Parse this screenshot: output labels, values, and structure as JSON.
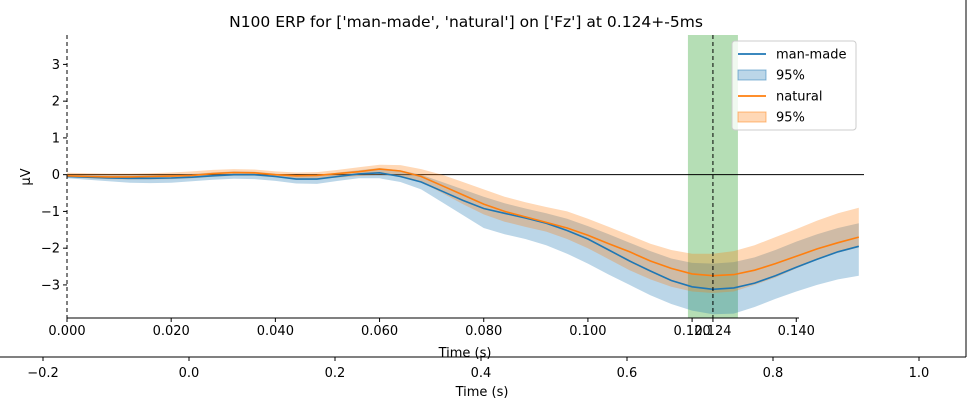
{
  "chart_data": {
    "type": "line",
    "title": "N100 ERP for ['man-made', 'natural'] on ['Fz'] at 0.124+-5ms",
    "xlabel": "Time (s)",
    "ylabel": "µV",
    "xlim": [
      0.0,
      0.153
    ],
    "ylim": [
      -3.9,
      3.8
    ],
    "xticks": [
      {
        "value": 0.0,
        "label": "0.000"
      },
      {
        "value": 0.02,
        "label": "0.020"
      },
      {
        "value": 0.04,
        "label": "0.040"
      },
      {
        "value": 0.06,
        "label": "0.060"
      },
      {
        "value": 0.08,
        "label": "0.080"
      },
      {
        "value": 0.1,
        "label": "0.100"
      },
      {
        "value": 0.12,
        "label": "0.120"
      },
      {
        "value": 0.124,
        "label": "0.124"
      },
      {
        "value": 0.14,
        "label": "0.140"
      }
    ],
    "yticks": [
      {
        "value": 3,
        "label": "3"
      },
      {
        "value": 2,
        "label": "2"
      },
      {
        "value": 1,
        "label": "1"
      },
      {
        "value": 0,
        "label": "0"
      },
      {
        "value": -1,
        "label": "−1"
      },
      {
        "value": -2,
        "label": "−2"
      },
      {
        "value": -3,
        "label": "−3"
      }
    ],
    "highlight_window": [
      0.1192,
      0.1288
    ],
    "highlight_color": "#2ca02c",
    "marker_time": 0.124,
    "x": [
      0.0,
      0.004,
      0.008,
      0.012,
      0.016,
      0.02,
      0.024,
      0.028,
      0.032,
      0.036,
      0.04,
      0.044,
      0.048,
      0.052,
      0.056,
      0.06,
      0.064,
      0.068,
      0.072,
      0.076,
      0.08,
      0.084,
      0.088,
      0.092,
      0.096,
      0.1,
      0.104,
      0.108,
      0.112,
      0.116,
      0.12,
      0.124,
      0.128,
      0.132,
      0.136,
      0.14,
      0.144,
      0.148,
      0.152
    ],
    "series": [
      {
        "name": "man-made",
        "color": "#1f77b4",
        "ci_label": "95%",
        "values": [
          -0.05,
          -0.07,
          -0.09,
          -0.1,
          -0.1,
          -0.09,
          -0.07,
          -0.03,
          0.0,
          0.0,
          -0.05,
          -0.12,
          -0.12,
          -0.05,
          0.02,
          0.05,
          -0.05,
          -0.2,
          -0.45,
          -0.7,
          -0.92,
          -1.05,
          -1.18,
          -1.32,
          -1.52,
          -1.75,
          -2.05,
          -2.35,
          -2.62,
          -2.88,
          -3.05,
          -3.12,
          -3.08,
          -2.95,
          -2.75,
          -2.52,
          -2.3,
          -2.1,
          -1.95
        ],
        "ci_low": [
          -0.1,
          -0.14,
          -0.18,
          -0.22,
          -0.23,
          -0.22,
          -0.18,
          -0.14,
          -0.11,
          -0.12,
          -0.17,
          -0.24,
          -0.25,
          -0.17,
          -0.1,
          -0.1,
          -0.2,
          -0.4,
          -0.75,
          -1.1,
          -1.45,
          -1.62,
          -1.75,
          -1.92,
          -2.15,
          -2.42,
          -2.72,
          -3.0,
          -3.28,
          -3.52,
          -3.7,
          -3.8,
          -3.78,
          -3.6,
          -3.38,
          -3.18,
          -3.0,
          -2.85,
          -2.75
        ]
      },
      {
        "name": "natural",
        "color": "#ff7f0e",
        "ci_label": "95%",
        "values": [
          -0.03,
          -0.05,
          -0.06,
          -0.06,
          -0.05,
          -0.04,
          -0.02,
          0.03,
          0.06,
          0.05,
          0.0,
          -0.03,
          -0.02,
          0.03,
          0.08,
          0.15,
          0.1,
          -0.05,
          -0.3,
          -0.55,
          -0.8,
          -1.0,
          -1.15,
          -1.3,
          -1.45,
          -1.65,
          -1.88,
          -2.1,
          -2.35,
          -2.55,
          -2.7,
          -2.75,
          -2.72,
          -2.6,
          -2.42,
          -2.22,
          -2.02,
          -1.85,
          -1.7
        ],
        "ci_high": [
          0.05,
          0.04,
          0.03,
          0.03,
          0.04,
          0.06,
          0.09,
          0.13,
          0.15,
          0.14,
          0.09,
          0.06,
          0.07,
          0.13,
          0.2,
          0.27,
          0.26,
          0.15,
          0.0,
          -0.2,
          -0.4,
          -0.6,
          -0.75,
          -0.88,
          -1.0,
          -1.2,
          -1.42,
          -1.65,
          -1.88,
          -2.05,
          -2.15,
          -2.15,
          -2.08,
          -1.92,
          -1.7,
          -1.48,
          -1.25,
          -1.05,
          -0.9
        ]
      }
    ],
    "overlap_band": {
      "low": [
        -0.07,
        -0.1,
        -0.12,
        -0.13,
        -0.13,
        -0.12,
        -0.1,
        -0.06,
        -0.03,
        -0.03,
        -0.07,
        -0.12,
        -0.12,
        -0.08,
        -0.04,
        0.0,
        -0.05,
        -0.2,
        -0.5,
        -0.8,
        -1.08,
        -1.28,
        -1.42,
        -1.55,
        -1.75,
        -2.0,
        -2.3,
        -2.6,
        -2.85,
        -3.05,
        -3.18,
        -3.22,
        -3.18,
        -3.0,
        -2.8,
        -2.55,
        -2.32,
        -2.12,
        -1.98
      ],
      "high": [
        0.0,
        -0.01,
        -0.02,
        -0.02,
        -0.01,
        0.0,
        0.02,
        0.06,
        0.09,
        0.08,
        0.03,
        -0.02,
        -0.02,
        0.06,
        0.12,
        0.18,
        0.12,
        0.0,
        -0.2,
        -0.4,
        -0.6,
        -0.78,
        -0.92,
        -1.05,
        -1.2,
        -1.4,
        -1.62,
        -1.85,
        -2.08,
        -2.28,
        -2.4,
        -2.42,
        -2.38,
        -2.25,
        -2.05,
        -1.82,
        -1.62,
        -1.45,
        -1.32
      ]
    },
    "legend_position": "top-right",
    "secondary_xaxis": {
      "xlabel": "Time (s)",
      "xlim": [
        -0.2,
        1.0
      ],
      "ticks": [
        {
          "value": -0.2,
          "label": "−0.2"
        },
        {
          "value": 0.0,
          "label": "0.0"
        },
        {
          "value": 0.2,
          "label": "0.2"
        },
        {
          "value": 0.4,
          "label": "0.4"
        },
        {
          "value": 0.6,
          "label": "0.6"
        },
        {
          "value": 0.8,
          "label": "0.8"
        },
        {
          "value": 1.0,
          "label": "1.0"
        }
      ]
    }
  }
}
